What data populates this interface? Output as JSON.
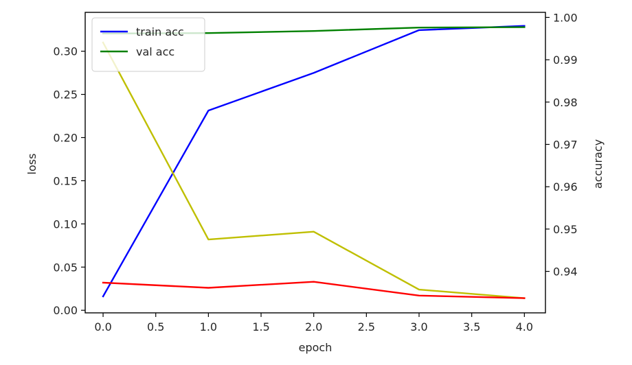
{
  "chart_data": {
    "type": "line",
    "x": [
      0,
      1,
      2,
      3,
      4
    ],
    "xlabel": "epoch",
    "xlim": [
      -0.17,
      4.2
    ],
    "xticks": [
      "0.0",
      "0.5",
      "1.0",
      "1.5",
      "2.0",
      "2.5",
      "3.0",
      "3.5",
      "4.0"
    ],
    "xtick_values": [
      0,
      0.5,
      1,
      1.5,
      2,
      2.5,
      3,
      3.5,
      4
    ],
    "left_axis": {
      "label": "loss",
      "ylim": [
        -0.003,
        0.345
      ],
      "ticks": [
        "0.00",
        "0.05",
        "0.10",
        "0.15",
        "0.20",
        "0.25",
        "0.30"
      ],
      "tick_values": [
        0,
        0.05,
        0.1,
        0.15,
        0.2,
        0.25,
        0.3
      ]
    },
    "right_axis": {
      "label": "accuracy",
      "ylim": [
        0.9302,
        1.0012
      ],
      "ticks": [
        "0.94",
        "0.95",
        "0.96",
        "0.97",
        "0.98",
        "0.99",
        "1.00"
      ],
      "tick_values": [
        0.94,
        0.95,
        0.96,
        0.97,
        0.98,
        0.99,
        1.0
      ]
    },
    "series": [
      {
        "name": "train acc",
        "axis": "right",
        "color": "#0000ff",
        "values": [
          0.9341,
          0.978,
          0.9869,
          0.997,
          0.998
        ]
      },
      {
        "name": "val acc",
        "axis": "right",
        "color": "#008000",
        "values": [
          0.9962,
          0.9963,
          0.9968,
          0.9976,
          0.9977
        ]
      },
      {
        "axis": "left",
        "color": "#bfbf00",
        "values": [
          0.31,
          0.082,
          0.091,
          0.024,
          0.014
        ]
      },
      {
        "axis": "left",
        "color": "#ff0000",
        "values": [
          0.032,
          0.026,
          0.033,
          0.017,
          0.014
        ]
      }
    ],
    "legend": {
      "location": "upper-left",
      "entries": [
        "train acc",
        "val acc"
      ]
    },
    "grid": false
  }
}
